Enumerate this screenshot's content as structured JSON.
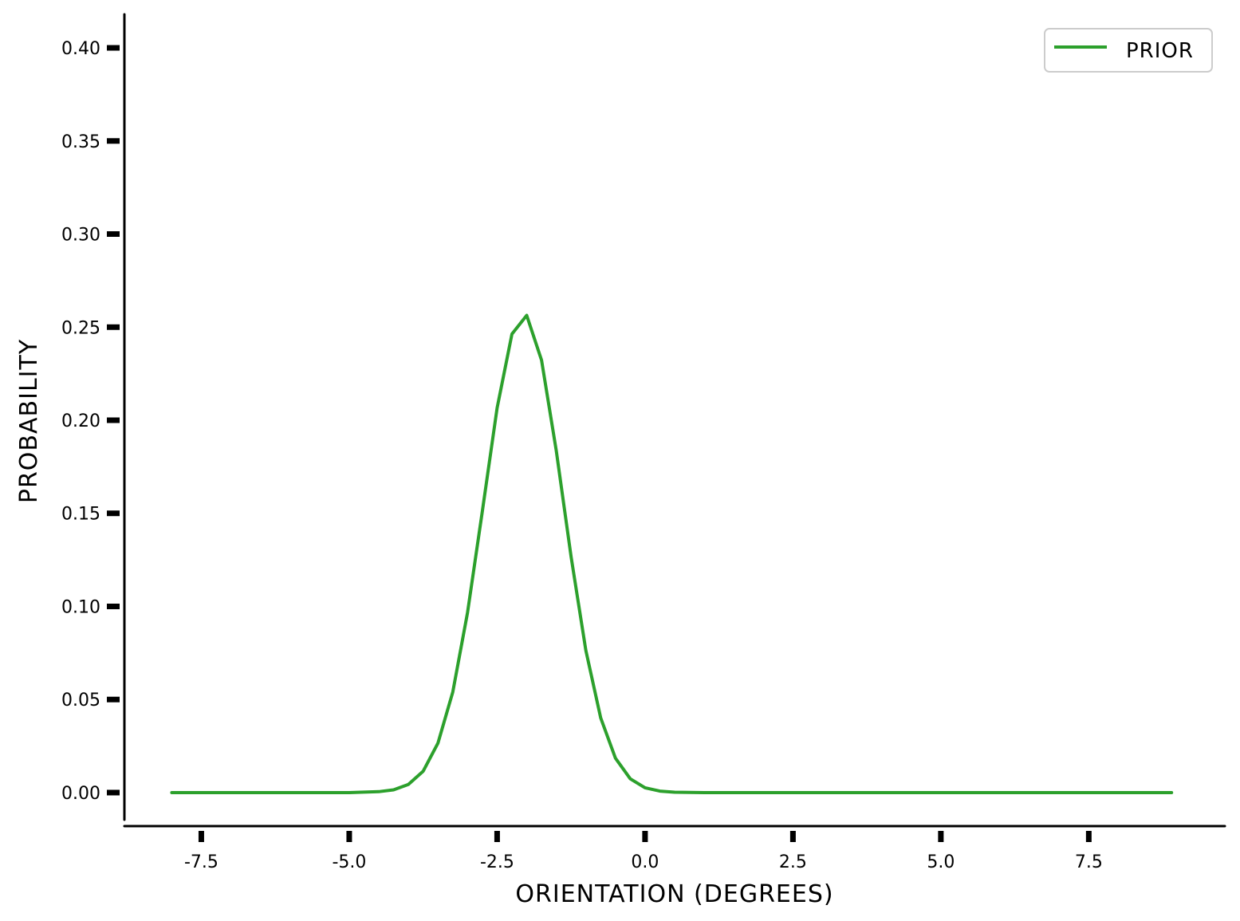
{
  "chart_data": {
    "type": "line",
    "title": "",
    "xlabel": "ORIENTATION (DEGREES)",
    "ylabel": "PROBABILITY",
    "xlim": [
      -8.8,
      9.8
    ],
    "ylim": [
      -0.018,
      0.418
    ],
    "xticks": [
      -7.5,
      -5.0,
      -2.5,
      0.0,
      2.5,
      5.0,
      7.5
    ],
    "xtick_labels": [
      "-7.5",
      "-5.0",
      "-2.5",
      "0.0",
      "2.5",
      "5.0",
      "7.5"
    ],
    "yticks": [
      0.0,
      0.05,
      0.1,
      0.15,
      0.2,
      0.25,
      0.3,
      0.35,
      0.4
    ],
    "ytick_labels": [
      "0.00",
      "0.05",
      "0.10",
      "0.15",
      "0.20",
      "0.25",
      "0.30",
      "0.35",
      "0.40"
    ],
    "grid": false,
    "legend_position": "top-right",
    "series": [
      {
        "name": "PRIOR",
        "color": "#2ca02c",
        "x": [
          -8.0,
          -7.5,
          -7.0,
          -6.5,
          -6.0,
          -5.5,
          -5.0,
          -4.5,
          -4.25,
          -4.0,
          -3.75,
          -3.5,
          -3.25,
          -3.0,
          -2.75,
          -2.5,
          -2.25,
          -2.0,
          -1.75,
          -1.5,
          -1.25,
          -1.0,
          -0.75,
          -0.5,
          -0.25,
          0.0,
          0.25,
          0.5,
          0.75,
          1.0,
          1.25,
          1.5,
          1.75,
          2.0,
          2.5,
          3.0,
          3.5,
          4.0,
          4.5,
          5.0,
          5.5,
          6.0,
          6.5,
          7.0,
          7.5,
          8.0,
          8.5,
          8.9
        ],
        "y": [
          0.0,
          0.0,
          0.0,
          0.0,
          0.0,
          0.0,
          0.0,
          0.0005,
          0.0015,
          0.0044,
          0.0115,
          0.0266,
          0.054,
          0.0967,
          0.1512,
          0.2066,
          0.2463,
          0.2563,
          0.2323,
          0.1836,
          0.1266,
          0.0763,
          0.0401,
          0.0185,
          0.0074,
          0.0026,
          0.0008,
          0.0002,
          0.0001,
          0.0,
          0.0,
          0.0,
          0.0,
          0.0,
          0.0,
          0.0,
          0.0,
          0.0,
          0.0,
          0.0,
          0.0,
          0.0,
          0.0,
          0.0,
          0.0,
          0.0,
          0.0,
          0.0
        ]
      }
    ]
  }
}
